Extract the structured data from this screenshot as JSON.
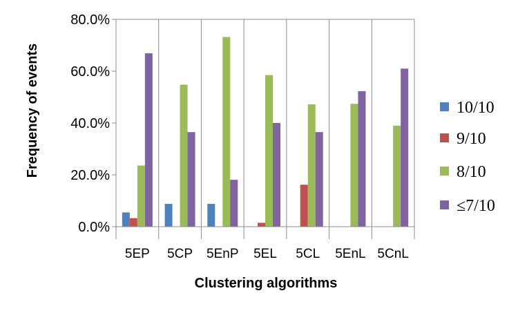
{
  "chart_data": {
    "type": "bar",
    "title": "",
    "xlabel": "Clustering algorithms",
    "ylabel": "Frequency of events",
    "ylim": [
      0,
      80
    ],
    "yticks": [
      "0.0%",
      "20.0%",
      "40.0%",
      "60.0%",
      "80.0%"
    ],
    "categories": [
      "5EP",
      "5CP",
      "5EnP",
      "5EL",
      "5CL",
      "5EnL",
      "5CnL"
    ],
    "legend_position": "right",
    "grid": "vertical category dividers",
    "series": [
      {
        "name": "10/10",
        "color": "#4F81BD",
        "values": [
          5.5,
          8.8,
          8.8,
          0,
          0,
          0,
          0
        ]
      },
      {
        "name": "9/10",
        "color": "#C0504D",
        "values": [
          3.3,
          0,
          0,
          1.5,
          16.2,
          0,
          0
        ]
      },
      {
        "name": "8/10",
        "color": "#9BBB59",
        "values": [
          23.6,
          54.8,
          73.2,
          58.5,
          47.2,
          47.4,
          39.0
        ]
      },
      {
        "name": "≤7/10",
        "color": "#8064A2",
        "values": [
          66.9,
          36.5,
          18.1,
          40.0,
          36.5,
          52.3,
          61.0
        ]
      }
    ]
  }
}
